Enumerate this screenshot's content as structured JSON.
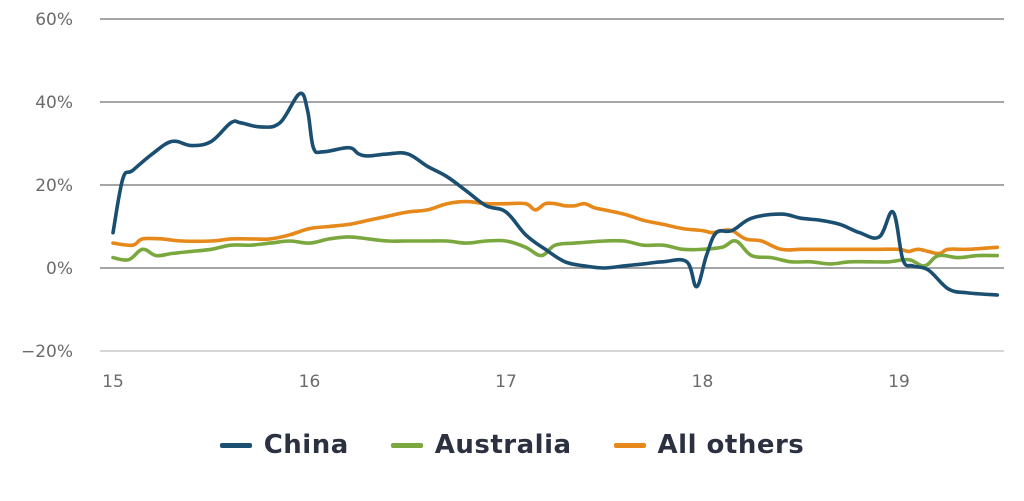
{
  "chart_data": {
    "type": "line",
    "title": "",
    "xlabel": "",
    "ylabel": "",
    "xlim": [
      15,
      19.5
    ],
    "ylim": [
      -20,
      60
    ],
    "x_ticks": [
      "15",
      "16",
      "17",
      "18",
      "19"
    ],
    "y_ticks": [
      {
        "value": 60,
        "label": "60%"
      },
      {
        "value": 40,
        "label": "40%"
      },
      {
        "value": 20,
        "label": "20%"
      },
      {
        "value": 0,
        "label": "0%"
      },
      {
        "value": -20,
        "label": "−20%"
      }
    ],
    "grid": true,
    "legend_position": "bottom",
    "series": [
      {
        "name": "China",
        "color": "#1b4f72",
        "x": [
          15.0,
          15.05,
          15.1,
          15.2,
          15.3,
          15.4,
          15.5,
          15.6,
          15.65,
          15.75,
          15.85,
          15.95,
          15.99,
          16.02,
          16.07,
          16.2,
          16.25,
          16.3,
          16.4,
          16.5,
          16.6,
          16.7,
          16.8,
          16.9,
          17.0,
          17.1,
          17.2,
          17.3,
          17.4,
          17.5,
          17.6,
          17.7,
          17.8,
          17.92,
          17.97,
          18.02,
          18.07,
          18.15,
          18.25,
          18.4,
          18.5,
          18.6,
          18.7,
          18.8,
          18.9,
          18.97,
          19.02,
          19.07,
          19.15,
          19.25,
          19.35,
          19.5
        ],
        "y": [
          8.5,
          21.5,
          23.5,
          27.5,
          30.5,
          29.5,
          30.5,
          35,
          35,
          34,
          35,
          42,
          38,
          29,
          28,
          29,
          27.5,
          27,
          27.5,
          27.5,
          24.5,
          22,
          18.5,
          15,
          13.5,
          8,
          4.5,
          1.5,
          0.5,
          0,
          0.5,
          1,
          1.5,
          1.5,
          -4.5,
          3,
          8.5,
          9,
          12,
          13,
          12,
          11.5,
          10.5,
          8.5,
          7.5,
          13.5,
          2,
          0.5,
          -0.5,
          -5,
          -6,
          -6.5
        ]
      },
      {
        "name": "Australia",
        "color": "#7aa83e",
        "x": [
          15.0,
          15.08,
          15.15,
          15.22,
          15.3,
          15.4,
          15.5,
          15.6,
          15.7,
          15.8,
          15.9,
          16.0,
          16.1,
          16.2,
          16.3,
          16.4,
          16.5,
          16.6,
          16.7,
          16.8,
          16.9,
          17.0,
          17.1,
          17.18,
          17.25,
          17.35,
          17.5,
          17.6,
          17.7,
          17.8,
          17.9,
          18.0,
          18.1,
          18.17,
          18.25,
          18.35,
          18.45,
          18.55,
          18.65,
          18.75,
          18.85,
          18.95,
          19.05,
          19.13,
          19.2,
          19.3,
          19.4,
          19.5
        ],
        "y": [
          2.5,
          2,
          4.5,
          3,
          3.5,
          4,
          4.5,
          5.5,
          5.5,
          6,
          6.5,
          6,
          7,
          7.5,
          7,
          6.5,
          6.5,
          6.5,
          6.5,
          6,
          6.5,
          6.5,
          5,
          3,
          5.5,
          6,
          6.5,
          6.5,
          5.5,
          5.5,
          4.5,
          4.5,
          5,
          6.5,
          3,
          2.5,
          1.5,
          1.5,
          1,
          1.5,
          1.5,
          1.5,
          2,
          0.5,
          3,
          2.5,
          3,
          3
        ]
      },
      {
        "name": "All others",
        "color": "#e6891a",
        "x": [
          15.0,
          15.1,
          15.15,
          15.25,
          15.35,
          15.5,
          15.6,
          15.7,
          15.8,
          15.9,
          16.0,
          16.1,
          16.2,
          16.3,
          16.4,
          16.5,
          16.6,
          16.7,
          16.8,
          16.9,
          17.0,
          17.1,
          17.15,
          17.2,
          17.25,
          17.3,
          17.35,
          17.4,
          17.45,
          17.5,
          17.6,
          17.7,
          17.8,
          17.9,
          18.0,
          18.05,
          18.1,
          18.15,
          18.22,
          18.3,
          18.4,
          18.5,
          18.6,
          18.7,
          18.8,
          18.9,
          19.0,
          19.05,
          19.1,
          19.2,
          19.25,
          19.35,
          19.5
        ],
        "y": [
          6,
          5.5,
          7,
          7,
          6.5,
          6.5,
          7,
          7,
          7,
          8,
          9.5,
          10,
          10.5,
          11.5,
          12.5,
          13.5,
          14,
          15.5,
          16,
          15.5,
          15.5,
          15.5,
          14,
          15.5,
          15.5,
          15,
          15,
          15.5,
          14.5,
          14,
          13,
          11.5,
          10.5,
          9.5,
          9,
          8.5,
          9,
          9,
          7,
          6.5,
          4.5,
          4.5,
          4.5,
          4.5,
          4.5,
          4.5,
          4.5,
          4,
          4.5,
          3.5,
          4.5,
          4.5,
          5
        ]
      }
    ]
  }
}
